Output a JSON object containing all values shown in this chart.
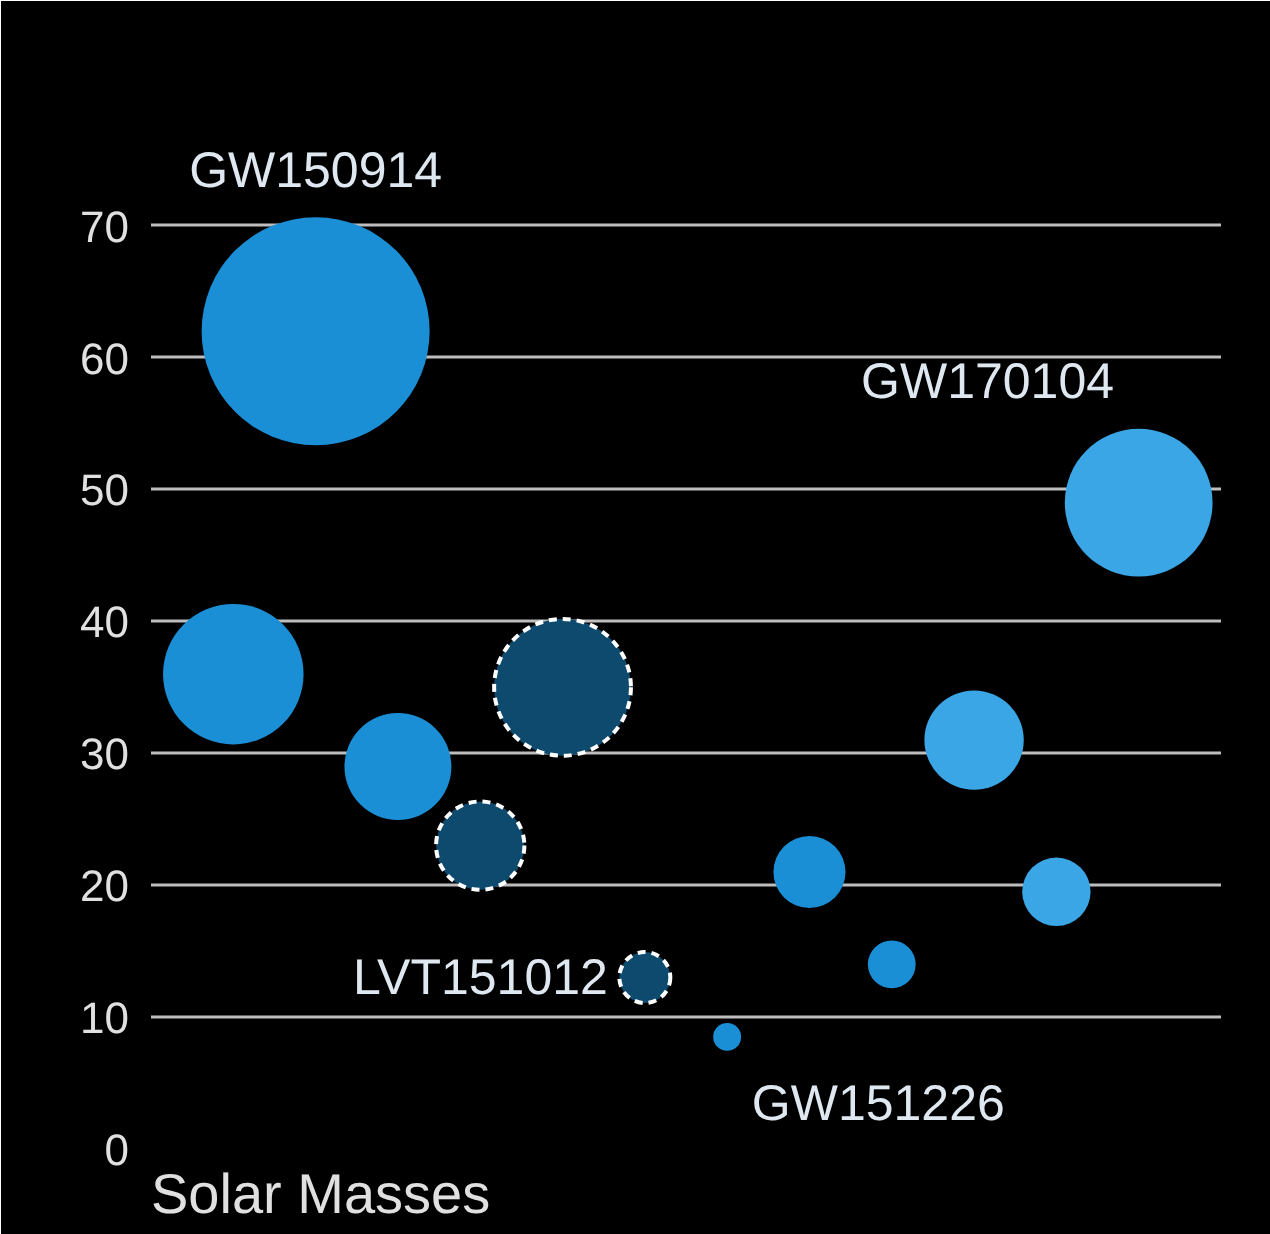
{
  "chart_data": {
    "type": "bubble",
    "annotations": [
      "Solar Masses"
    ],
    "categories": [
      null,
      null,
      null,
      null,
      null,
      null,
      null,
      null,
      null,
      null,
      null,
      null
    ],
    "ylim": [
      0,
      84
    ],
    "yticks": [
      0,
      10,
      20,
      30,
      40,
      50,
      60,
      70
    ],
    "grid": "y",
    "series": [
      {
        "name": "GW150914",
        "color": "#1a8fd6",
        "values": [
          36,
          62,
          29,
          null,
          null,
          null,
          null,
          null,
          null,
          null,
          null,
          null
        ],
        "sizes": [
          0.38,
          1,
          0.22,
          null,
          null,
          null,
          null,
          null,
          null,
          null,
          null,
          null
        ]
      },
      {
        "name": "LVT151012",
        "color": "#0e4a6e",
        "line_style": "dashed",
        "values": [
          null,
          null,
          null,
          23,
          35,
          13,
          null,
          null,
          null,
          null,
          null,
          null
        ],
        "sizes": [
          null,
          null,
          null,
          0.15,
          0.36,
          0.05,
          null,
          null,
          null,
          null,
          null,
          null
        ]
      },
      {
        "name": "GW151226",
        "color": "#1a8fd6",
        "values": [
          null,
          null,
          null,
          null,
          null,
          null,
          8.5,
          21,
          14,
          null,
          null,
          null
        ],
        "sizes": [
          null,
          null,
          null,
          null,
          null,
          null,
          0.015,
          0.1,
          0.044,
          null,
          null,
          null
        ]
      },
      {
        "name": "GW170104",
        "color": "#3aa6e6",
        "values": [
          null,
          null,
          null,
          null,
          null,
          null,
          null,
          null,
          null,
          31,
          19.5,
          49
        ],
        "sizes": [
          null,
          null,
          null,
          null,
          null,
          null,
          null,
          null,
          null,
          0.19,
          0.09,
          0.42
        ]
      }
    ]
  }
}
